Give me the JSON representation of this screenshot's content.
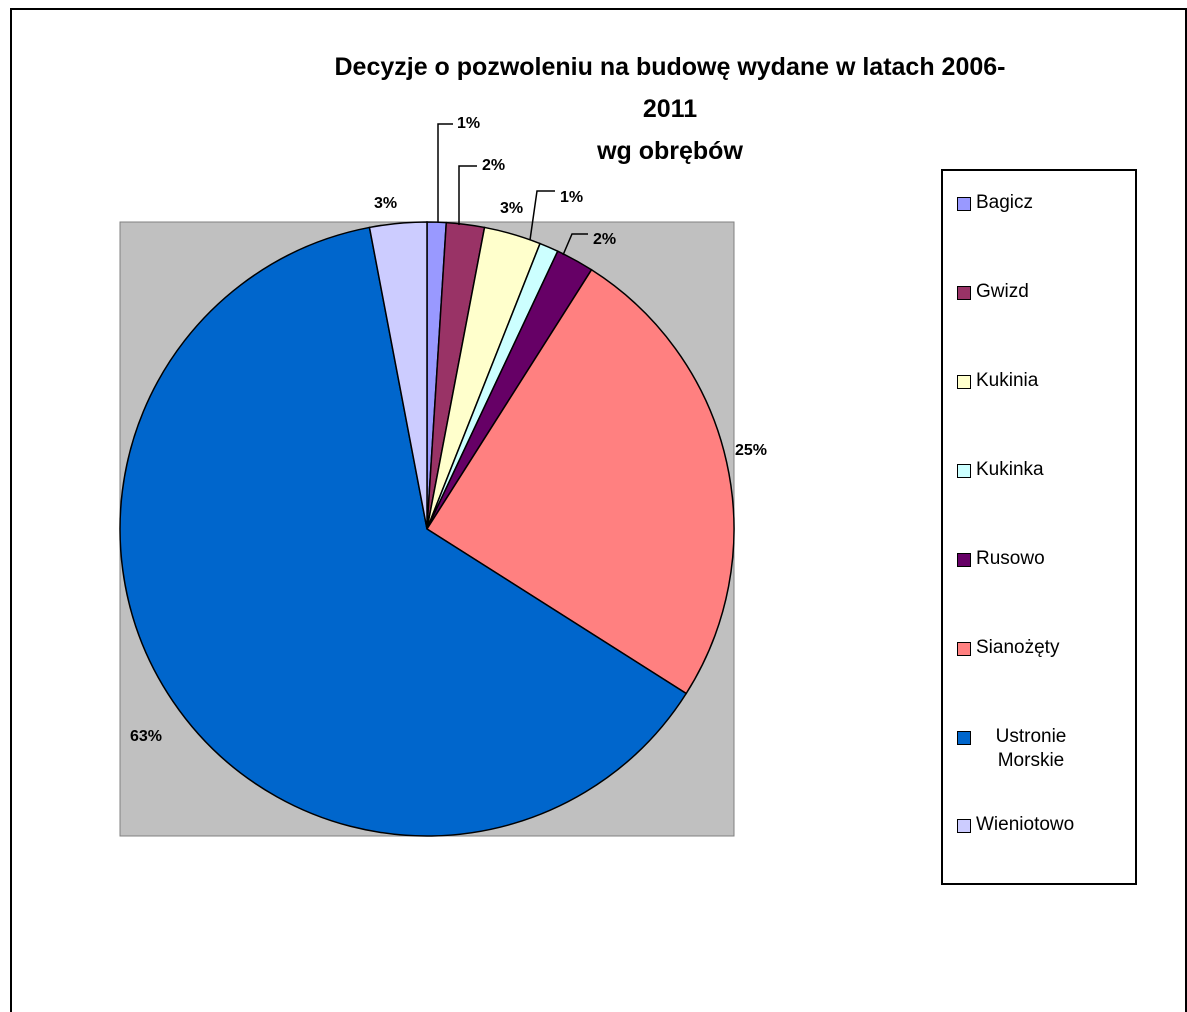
{
  "chart_data": {
    "type": "pie",
    "title": "Decyzje o pozwoleniu na budowę wydane w latach 2006-2011 wg obrębów",
    "title_lines": [
      "Decyzje o pozwoleniu na budowę wydane w latach 2006-2011",
      "wg obrębów"
    ],
    "categories": [
      "Bagicz",
      "Gwizd",
      "Kukinia",
      "Kukinka",
      "Rusowo",
      "Sianożęty",
      "Ustronie Morskie",
      "Wieniotowo"
    ],
    "values": [
      1,
      2,
      3,
      1,
      2,
      25,
      63,
      3
    ],
    "labels": [
      "1%",
      "2%",
      "3%",
      "1%",
      "2%",
      "25%",
      "63%",
      "3%"
    ],
    "colors": [
      "#9999ff",
      "#993366",
      "#ffffcc",
      "#ccffff",
      "#660066",
      "#ff8080",
      "#0066cc",
      "#ccccff"
    ],
    "legend_position": "right",
    "legend_items": [
      {
        "label": "Bagicz",
        "color": "#9999ff"
      },
      {
        "label": "Gwizd",
        "color": "#993366"
      },
      {
        "label": "Kukinia",
        "color": "#ffffcc"
      },
      {
        "label": "Kukinka",
        "color": "#ccffff"
      },
      {
        "label": "Rusowo",
        "color": "#660066"
      },
      {
        "label": "Sianożęty",
        "color": "#ff8080"
      },
      {
        "label": "Ustronie Morskie",
        "color": "#0066cc"
      },
      {
        "label": "Wieniotowo",
        "color": "#ccccff"
      }
    ],
    "plot_area_color": "#c0c0c0"
  }
}
